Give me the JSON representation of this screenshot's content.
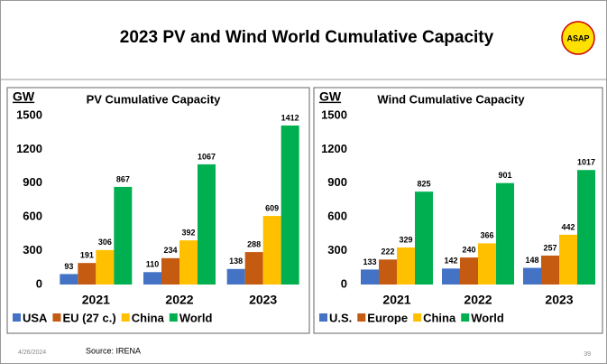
{
  "title": "2023 PV and Wind World Cumulative Capacity",
  "logo": "ASAP",
  "footer": {
    "date": "4/26/2024",
    "source": "Source: IRENA",
    "page": "39"
  },
  "chart_data": [
    {
      "type": "bar",
      "title": "PV Cumulative Capacity",
      "y_label": "GW",
      "categories": [
        "2021",
        "2022",
        "2023"
      ],
      "series": [
        {
          "name": "USA",
          "color": "#4472c4",
          "values": [
            93,
            110,
            138
          ]
        },
        {
          "name": "EU (27 c.)",
          "color": "#c55a11",
          "values": [
            191,
            234,
            288
          ]
        },
        {
          "name": "China",
          "color": "#ffc000",
          "values": [
            306,
            392,
            609
          ]
        },
        {
          "name": "World",
          "color": "#00b050",
          "values": [
            867,
            1067,
            1412
          ]
        }
      ],
      "ylim": [
        0,
        1500
      ],
      "yticks": [
        0,
        300,
        600,
        900,
        1200,
        1500
      ]
    },
    {
      "type": "bar",
      "title": "Wind Cumulative Capacity",
      "y_label": "GW",
      "categories": [
        "2021",
        "2022",
        "2023"
      ],
      "series": [
        {
          "name": "U.S.",
          "color": "#4472c4",
          "values": [
            133,
            142,
            148
          ]
        },
        {
          "name": "Europe",
          "color": "#c55a11",
          "values": [
            222,
            240,
            257
          ]
        },
        {
          "name": "China",
          "color": "#ffc000",
          "values": [
            329,
            366,
            442
          ]
        },
        {
          "name": "World",
          "color": "#00b050",
          "values": [
            825,
            901,
            1017
          ]
        }
      ],
      "ylim": [
        0,
        1500
      ],
      "yticks": [
        0,
        300,
        600,
        900,
        1200,
        1500
      ]
    }
  ]
}
